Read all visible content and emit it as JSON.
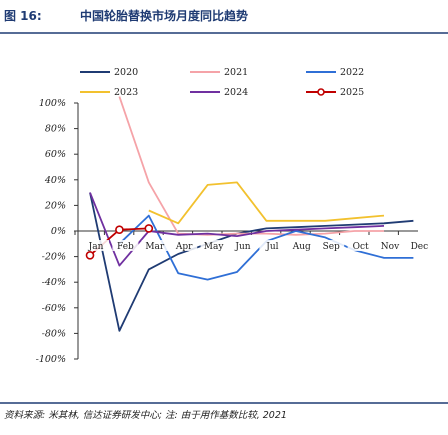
{
  "figure": {
    "label": "图 16:",
    "title": "中国轮胎替换市场月度同比趋势"
  },
  "source": {
    "text": "资料来源: 米其林, 信达证券研发中心; 注: 由于用作基数比较, 2021"
  },
  "colors": {
    "title_rule": "#1f3b73",
    "axis": "#333333"
  },
  "chart_data": {
    "type": "line",
    "categories": [
      "Jan",
      "Feb",
      "Mar",
      "Apr",
      "May",
      "Jun",
      "Jul",
      "Aug",
      "Sep",
      "Oct",
      "Nov",
      "Dec"
    ],
    "y_ticks": [
      "100%",
      "80%",
      "60%",
      "40%",
      "20%",
      "0%",
      "-20%",
      "-40%",
      "-60%",
      "-80%",
      "-100%"
    ],
    "ylim": [
      -100,
      100
    ],
    "title": "",
    "xlabel": "",
    "ylabel": "",
    "grid": false,
    "legend_position": "top",
    "series": [
      {
        "name": "2020",
        "color": "#1f3b73",
        "marker": false,
        "values": [
          30,
          -78,
          -30,
          -18,
          -10,
          -2,
          2,
          3,
          4,
          5,
          6,
          8
        ]
      },
      {
        "name": "2021",
        "color": "#f5a3a8",
        "marker": false,
        "values": [
          null,
          105,
          38,
          -2,
          -3,
          -2,
          -2,
          -3,
          -2,
          0,
          0,
          null
        ]
      },
      {
        "name": "2022",
        "color": "#2f6fd6",
        "marker": false,
        "values": [
          null,
          -10,
          12,
          -33,
          -38,
          -32,
          -8,
          0,
          -5,
          -15,
          -21,
          -21
        ]
      },
      {
        "name": "2023",
        "color": "#f2c12e",
        "marker": false,
        "values": [
          null,
          null,
          16,
          6,
          36,
          38,
          8,
          8,
          8,
          10,
          12,
          null
        ]
      },
      {
        "name": "2024",
        "color": "#7030a0",
        "marker": false,
        "values": [
          30,
          -27,
          0,
          -3,
          -2,
          -4,
          0,
          1,
          2,
          3,
          4,
          null
        ]
      },
      {
        "name": "2025",
        "color": "#c00000",
        "marker": true,
        "values": [
          -19,
          1,
          2,
          null,
          null,
          null,
          null,
          null,
          null,
          null,
          null,
          null
        ]
      }
    ]
  }
}
